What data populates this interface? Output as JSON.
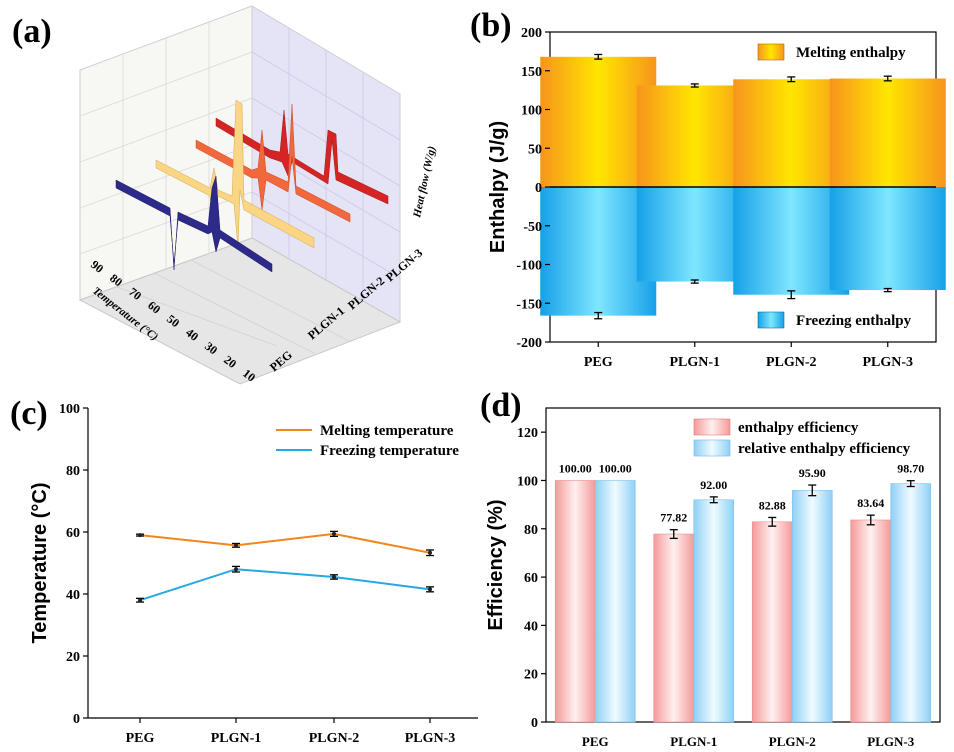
{
  "panels": {
    "a": "(a)",
    "b": "(b)",
    "c": "(c)",
    "d": "(d)"
  },
  "chart_data": [
    {
      "panel": "a",
      "type": "line",
      "ylabel": "Heat flow (W/g)",
      "xlabel": "Temperature (°C)",
      "x_ticks": [
        "90",
        "80",
        "70",
        "60",
        "50",
        "40",
        "30",
        "20",
        "10"
      ],
      "categories": [
        "PEG",
        "PLGN-1",
        "PLGN-2",
        "PLGN-3"
      ],
      "colors": [
        "#3a2c8c",
        "#f7d27a",
        "#f46a3e",
        "#d82424"
      ]
    },
    {
      "panel": "b",
      "type": "bar",
      "categories": [
        "PEG",
        "PLGN-1",
        "PLGN-2",
        "PLGN-3"
      ],
      "series": [
        {
          "name": "Melting enthalpy",
          "values": [
            168,
            131,
            139,
            140
          ],
          "errors": [
            3,
            2,
            3,
            3
          ],
          "color": "#f8a51a"
        },
        {
          "name": "Freezing enthalpy",
          "values": [
            -166,
            -122,
            -139,
            -133
          ],
          "errors": [
            4,
            2,
            5,
            2
          ],
          "color": "#1aa6ec"
        }
      ],
      "ylabel": "Enthalpy (J/g)",
      "ylim": [
        -200,
        200
      ],
      "y_ticks": [
        "-200",
        "-150",
        "-100",
        "-50",
        "0",
        "50",
        "100",
        "150",
        "200"
      ],
      "legend": "inside"
    },
    {
      "panel": "c",
      "type": "line",
      "categories": [
        "PEG",
        "PLGN-1",
        "PLGN-2",
        "PLGN-3"
      ],
      "series": [
        {
          "name": "Melting temperature",
          "values": [
            59.0,
            55.7,
            59.4,
            53.3
          ],
          "errors": [
            0.3,
            0.6,
            0.8,
            0.9
          ],
          "color": "#f0861e"
        },
        {
          "name": "Freezing temperature",
          "values": [
            38.0,
            48.0,
            45.5,
            41.5
          ],
          "errors": [
            0.6,
            0.9,
            0.7,
            0.8
          ],
          "color": "#27a7e3"
        }
      ],
      "ylabel": "Temperature (°C)",
      "ylim": [
        0,
        100
      ],
      "y_ticks": [
        "0",
        "20",
        "40",
        "60",
        "80",
        "100"
      ],
      "legend": "top-right"
    },
    {
      "panel": "d",
      "type": "bar",
      "categories": [
        "PEG",
        "PLGN-1",
        "PLGN-2",
        "PLGN-3"
      ],
      "series": [
        {
          "name": "enthalpy efficiency",
          "values": [
            100.0,
            77.82,
            82.88,
            83.64
          ],
          "labels": [
            "100.00",
            "77.82",
            "82.88",
            "83.64"
          ],
          "errors": [
            0,
            1.8,
            1.8,
            2.0
          ],
          "color": "#f6b3b3"
        },
        {
          "name": "relative enthalpy efficiency",
          "values": [
            100.0,
            92.0,
            95.9,
            98.7
          ],
          "labels": [
            "100.00",
            "92.00",
            "95.90",
            "98.70"
          ],
          "errors": [
            0,
            1.2,
            2.2,
            1.2
          ],
          "color": "#a8d9f6"
        }
      ],
      "ylabel": "Efficiency (%)",
      "ylim": [
        0,
        130
      ],
      "y_ticks": [
        "0",
        "20",
        "40",
        "60",
        "80",
        "100",
        "120"
      ],
      "legend": "top-right"
    }
  ]
}
